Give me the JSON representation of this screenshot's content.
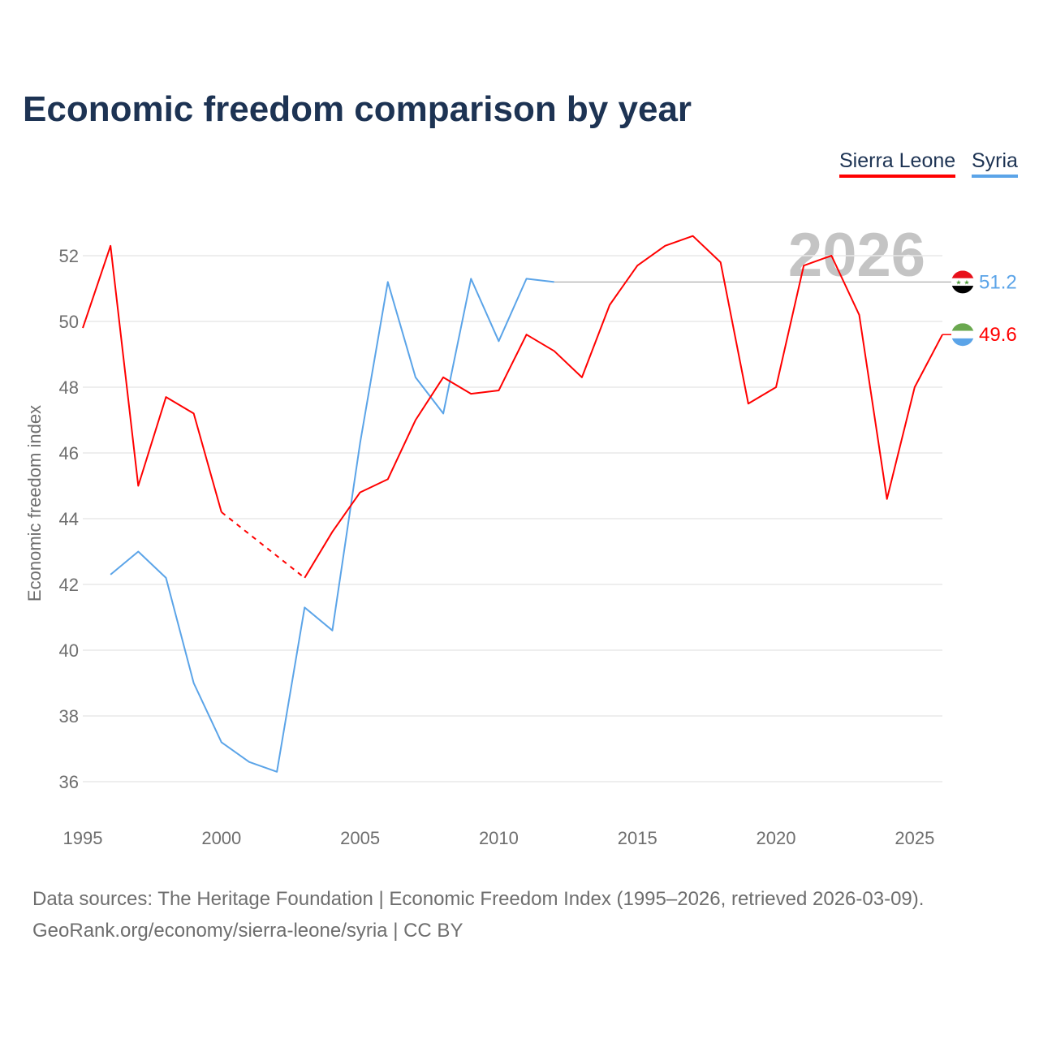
{
  "title": "Economic freedom comparison by year",
  "source_line1": "Data sources: The Heritage Foundation | Economic Freedom Index (1995–2026, retrieved 2026-03-09).",
  "source_line2": "GeoRank.org/economy/sierra-leone/syria | CC BY",
  "chart_data": {
    "type": "line",
    "title": "Economic freedom comparison by year",
    "xlabel": "",
    "ylabel": "Economic freedom index",
    "xlim": [
      1995,
      2026
    ],
    "ylim": [
      36,
      52
    ],
    "x_ticks": [
      "1995",
      "2000",
      "2005",
      "2010",
      "2015",
      "2020",
      "2025"
    ],
    "y_ticks": [
      "36",
      "38",
      "40",
      "42",
      "44",
      "46",
      "48",
      "50",
      "52"
    ],
    "grid": true,
    "legend_position": "top-right",
    "year_watermark": "2026",
    "series": [
      {
        "name": "Sierra Leone",
        "color": "#ff0000",
        "end_label": "49.6",
        "x": [
          1995,
          1996,
          1997,
          1998,
          1999,
          2000,
          2003,
          2004,
          2005,
          2006,
          2007,
          2008,
          2009,
          2010,
          2011,
          2012,
          2013,
          2014,
          2015,
          2016,
          2017,
          2018,
          2019,
          2020,
          2021,
          2022,
          2023,
          2024,
          2025,
          2026
        ],
        "values": [
          49.8,
          52.3,
          45.0,
          47.7,
          47.2,
          44.2,
          42.2,
          43.6,
          44.8,
          45.2,
          47.0,
          48.3,
          47.8,
          47.9,
          49.6,
          49.1,
          48.3,
          50.5,
          51.7,
          52.3,
          52.6,
          51.8,
          47.5,
          48.0,
          51.7,
          52.0,
          50.2,
          44.6,
          48.0,
          49.6
        ],
        "gaps_dashed": [
          [
            2000,
            2003
          ]
        ]
      },
      {
        "name": "Syria",
        "color": "#5ba4e8",
        "end_label": "51.2",
        "x": [
          1996,
          1997,
          1998,
          1999,
          2000,
          2001,
          2002,
          2003,
          2004,
          2005,
          2006,
          2007,
          2008,
          2009,
          2010,
          2011,
          2012
        ],
        "values": [
          42.3,
          43.0,
          42.2,
          39.0,
          37.2,
          36.6,
          36.3,
          41.3,
          40.6,
          46.3,
          51.2,
          48.3,
          47.2,
          51.3,
          49.4,
          51.3,
          51.2
        ],
        "carried_forward_to": 2026
      }
    ]
  }
}
